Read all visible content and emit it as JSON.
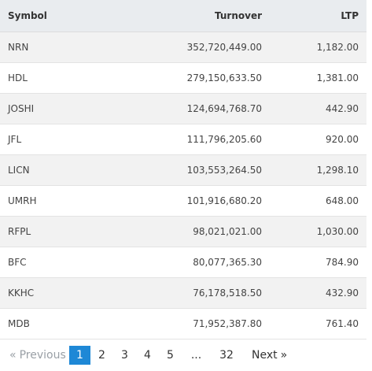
{
  "table": {
    "headers": {
      "symbol": "Symbol",
      "turnover": "Turnover",
      "ltp": "LTP"
    },
    "rows": [
      {
        "symbol": "NRN",
        "turnover": "352,720,449.00",
        "ltp": "1,182.00"
      },
      {
        "symbol": "HDL",
        "turnover": "279,150,633.50",
        "ltp": "1,381.00"
      },
      {
        "symbol": "JOSHI",
        "turnover": "124,694,768.70",
        "ltp": "442.90"
      },
      {
        "symbol": "JFL",
        "turnover": "111,796,205.60",
        "ltp": "920.00"
      },
      {
        "symbol": "LICN",
        "turnover": "103,553,264.50",
        "ltp": "1,298.10"
      },
      {
        "symbol": "UMRH",
        "turnover": "101,916,680.20",
        "ltp": "648.00"
      },
      {
        "symbol": "RFPL",
        "turnover": "98,021,021.00",
        "ltp": "1,030.00"
      },
      {
        "symbol": "BFC",
        "turnover": "80,077,365.30",
        "ltp": "784.90"
      },
      {
        "symbol": "KKHC",
        "turnover": "76,178,518.50",
        "ltp": "432.90"
      },
      {
        "symbol": "MDB",
        "turnover": "71,952,387.80",
        "ltp": "761.40"
      }
    ]
  },
  "pagination": {
    "prev_arrow": "«",
    "prev_label": "Previous",
    "pages": [
      "1",
      "2",
      "3",
      "4",
      "5"
    ],
    "active_page": "1",
    "ellipsis": "...",
    "last_page": "32",
    "next_label": "Next",
    "next_arrow": "»"
  },
  "colors": {
    "active_page_bg": "#1e88d6",
    "header_bg": "#e9ecef",
    "stripe_bg": "#f2f2f2"
  }
}
